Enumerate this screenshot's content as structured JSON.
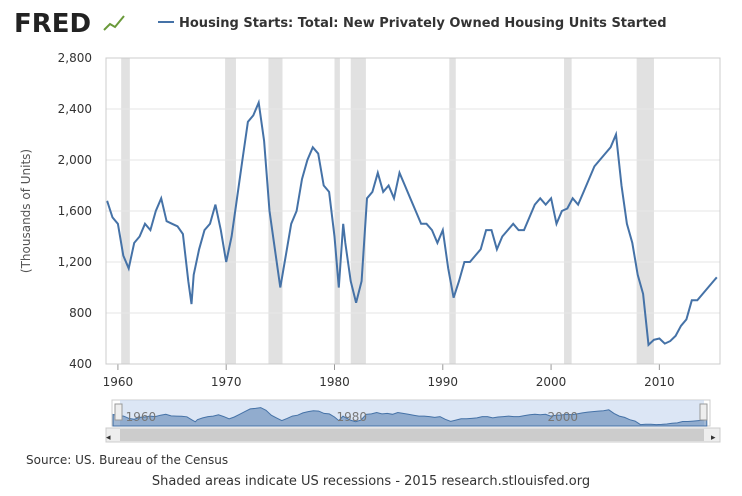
{
  "chart_data": {
    "type": "line",
    "logo": "FRED",
    "y_label": "(Thousands of Units)",
    "source": "Source: US. Bureau of the Census",
    "note": "Shaded areas indicate US recessions - 2015 research.stlouisfed.org",
    "xlim": [
      1958.9,
      2015.6
    ],
    "xticks": [
      1960,
      1970,
      1980,
      1990,
      2000,
      2010
    ],
    "ylim": [
      400,
      2800
    ],
    "yticks": [
      400,
      800,
      {
        "value": 1200,
        "label": "1,200"
      },
      {
        "value": 1600,
        "label": "1,600"
      },
      {
        "value": 2000,
        "label": "2,000"
      },
      {
        "value": 2400,
        "label": "2,400"
      },
      {
        "value": 2800,
        "label": "2,800"
      }
    ],
    "grid": true,
    "recession_color": "#e1e1e1",
    "recessions": [
      [
        1960.3,
        1961.1
      ],
      [
        1969.9,
        1970.9
      ],
      [
        1973.9,
        1975.2
      ],
      [
        1980.0,
        1980.5
      ],
      [
        1981.5,
        1982.9
      ],
      [
        1990.6,
        1991.2
      ],
      [
        2001.2,
        2001.9
      ],
      [
        2007.9,
        2009.5
      ]
    ],
    "navigator_ticks": [
      1960,
      1980,
      2000
    ],
    "x": [
      1959.0,
      1959.5,
      1960.0,
      1960.5,
      1961.0,
      1961.5,
      1962.0,
      1962.5,
      1963.0,
      1963.5,
      1964.0,
      1964.5,
      1965.0,
      1965.5,
      1966.0,
      1966.5,
      1966.8,
      1967.0,
      1967.5,
      1968.0,
      1968.5,
      1969.0,
      1969.5,
      1970.0,
      1970.5,
      1971.0,
      1971.5,
      1972.0,
      1972.5,
      1973.0,
      1973.5,
      1974.0,
      1974.5,
      1975.0,
      1975.5,
      1976.0,
      1976.5,
      1977.0,
      1977.5,
      1978.0,
      1978.5,
      1979.0,
      1979.5,
      1980.0,
      1980.4,
      1980.8,
      1981.0,
      1981.5,
      1982.0,
      1982.5,
      1983.0,
      1983.5,
      1984.0,
      1984.5,
      1985.0,
      1985.5,
      1986.0,
      1986.5,
      1987.0,
      1987.5,
      1988.0,
      1988.5,
      1989.0,
      1989.5,
      1990.0,
      1990.5,
      1991.0,
      1991.5,
      1992.0,
      1992.5,
      1993.0,
      1993.5,
      1994.0,
      1994.5,
      1995.0,
      1995.5,
      1996.0,
      1996.5,
      1997.0,
      1997.5,
      1998.0,
      1998.5,
      1999.0,
      1999.5,
      2000.0,
      2000.5,
      2001.0,
      2001.5,
      2002.0,
      2002.5,
      2003.0,
      2003.5,
      2004.0,
      2004.5,
      2005.0,
      2005.5,
      2006.0,
      2006.5,
      2007.0,
      2007.5,
      2008.0,
      2008.5,
      2009.0,
      2009.5,
      2010.0,
      2010.5,
      2011.0,
      2011.5,
      2012.0,
      2012.5,
      2013.0,
      2013.5,
      2014.0,
      2014.5,
      2015.0,
      2015.3
    ],
    "series": [
      {
        "name": "Housing Starts: Total: New Privately Owned Housing Units Started",
        "color": "#4572a7",
        "values": [
          1680,
          1550,
          1500,
          1250,
          1150,
          1350,
          1400,
          1500,
          1450,
          1600,
          1700,
          1520,
          1500,
          1480,
          1420,
          1050,
          870,
          1100,
          1300,
          1450,
          1500,
          1650,
          1450,
          1200,
          1400,
          1700,
          2000,
          2300,
          2350,
          2450,
          2150,
          1600,
          1300,
          1000,
          1250,
          1500,
          1600,
          1850,
          2000,
          2100,
          2050,
          1800,
          1750,
          1400,
          1000,
          1500,
          1350,
          1050,
          880,
          1050,
          1700,
          1750,
          1900,
          1750,
          1800,
          1700,
          1900,
          1800,
          1700,
          1600,
          1500,
          1500,
          1450,
          1350,
          1450,
          1150,
          920,
          1050,
          1200,
          1200,
          1250,
          1300,
          1450,
          1450,
          1300,
          1400,
          1450,
          1500,
          1450,
          1450,
          1550,
          1650,
          1700,
          1650,
          1700,
          1500,
          1600,
          1620,
          1700,
          1650,
          1750,
          1850,
          1950,
          2000,
          2050,
          2100,
          2200,
          1800,
          1500,
          1350,
          1100,
          950,
          550,
          590,
          600,
          560,
          580,
          620,
          700,
          750,
          900,
          900,
          950,
          1000,
          1050,
          1080
        ]
      }
    ]
  }
}
